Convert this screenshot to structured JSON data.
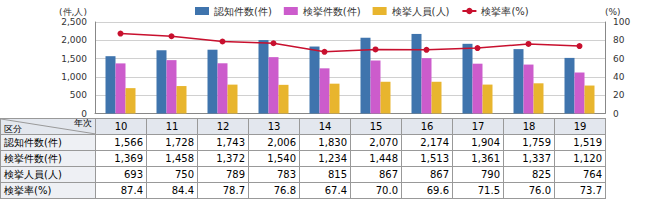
{
  "chart_data": {
    "type": "bar",
    "categories": [
      "10",
      "11",
      "12",
      "13",
      "14",
      "15",
      "16",
      "17",
      "18",
      "19"
    ],
    "series": [
      {
        "name": "認知件数(件)",
        "color": "#3f74ad",
        "values": [
          1566,
          1728,
          1743,
          2006,
          1830,
          2070,
          2174,
          1904,
          1759,
          1519
        ],
        "value_labels": [
          "1,566",
          "1,728",
          "1,743",
          "2,006",
          "1,830",
          "2,070",
          "2,174",
          "1,904",
          "1,759",
          "1,519"
        ]
      },
      {
        "name": "検挙件数(件)",
        "color": "#cc5ccc",
        "values": [
          1369,
          1458,
          1372,
          1540,
          1234,
          1448,
          1513,
          1361,
          1337,
          1120
        ],
        "value_labels": [
          "1,369",
          "1,458",
          "1,372",
          "1,540",
          "1,234",
          "1,448",
          "1,513",
          "1,361",
          "1,337",
          "1,120"
        ]
      },
      {
        "name": "検挙人員(人)",
        "color": "#e8b52e",
        "values": [
          693,
          750,
          789,
          783,
          815,
          867,
          867,
          790,
          825,
          764
        ],
        "value_labels": [
          "693",
          "750",
          "789",
          "783",
          "815",
          "867",
          "867",
          "790",
          "825",
          "764"
        ]
      },
      {
        "name": "検挙率(%)",
        "color": "#c8102e",
        "type": "line",
        "axis": "y2",
        "marker": "circle",
        "values": [
          87.4,
          84.4,
          78.7,
          76.8,
          67.4,
          70.0,
          69.6,
          71.5,
          76.0,
          73.7
        ],
        "value_labels": [
          "87.4",
          "84.4",
          "78.7",
          "76.8",
          "67.4",
          "70.0",
          "69.6",
          "71.5",
          "76.0",
          "73.7"
        ]
      }
    ],
    "y_label": "(件,人)",
    "y2_label": "(%)",
    "ylim": [
      0,
      2500
    ],
    "yticks": [
      0,
      500,
      {
        "value": 1000,
        "label": "1,000"
      },
      {
        "value": 1500,
        "label": "1,500"
      },
      {
        "value": 2000,
        "label": "2,000"
      },
      {
        "value": 2500,
        "label": "2,500"
      }
    ],
    "y2lim": [
      0,
      100
    ],
    "y2ticks": [
      0,
      20,
      40,
      60,
      80,
      100
    ],
    "grid": true,
    "legend": "top",
    "table": {
      "corner": [
        "区分",
        "年次"
      ]
    }
  }
}
